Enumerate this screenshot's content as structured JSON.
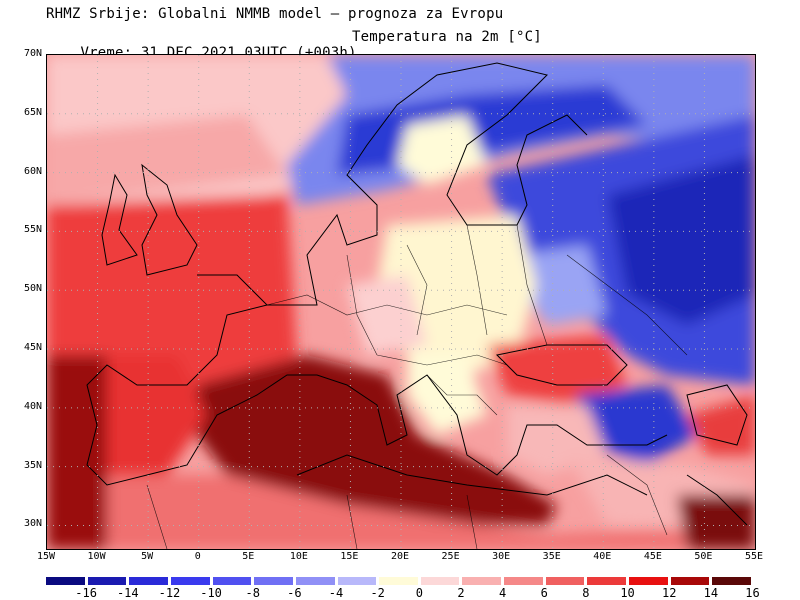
{
  "header": {
    "line1": "RHMZ Srbije: Globalni NMMB model — prognoza za Evropu",
    "line2_valid": "Vreme: 31 DEC 2021 03UTC (+003h)",
    "line2_variable": "Temperatura na 2m [°C]"
  },
  "map": {
    "projection": "lat-lon",
    "lon_range": [
      -15,
      55
    ],
    "lat_range": [
      28,
      70
    ],
    "grid": true,
    "lat_labels": [
      "70N",
      "65N",
      "60N",
      "55N",
      "50N",
      "45N",
      "40N",
      "35N",
      "30N"
    ],
    "lon_labels": [
      "15W",
      "10W",
      "5W",
      "0",
      "5E",
      "10E",
      "15E",
      "20E",
      "25E",
      "30E",
      "35E",
      "40E",
      "45E",
      "50E",
      "55E"
    ]
  },
  "colorbar": {
    "labels": [
      "-16",
      "-14",
      "-12",
      "-10",
      "-8",
      "-6",
      "-4",
      "-2",
      "0",
      "2",
      "4",
      "6",
      "8",
      "10",
      "12",
      "14",
      "16"
    ],
    "colors": [
      "#0a0a80",
      "#1a1ab0",
      "#2a2ad8",
      "#3a3aee",
      "#5050f0",
      "#7070f4",
      "#9090f6",
      "#b8b8fa",
      "#fffbd8",
      "#fcd8d8",
      "#f9b0b0",
      "#f58888",
      "#f06060",
      "#ec3a3a",
      "#e81010",
      "#a80808",
      "#5a0808"
    ]
  },
  "fields": {
    "sea_color": "#fcd0d0",
    "warm_med_color": "#780a0a",
    "cold_east_color": "#2838d8"
  }
}
